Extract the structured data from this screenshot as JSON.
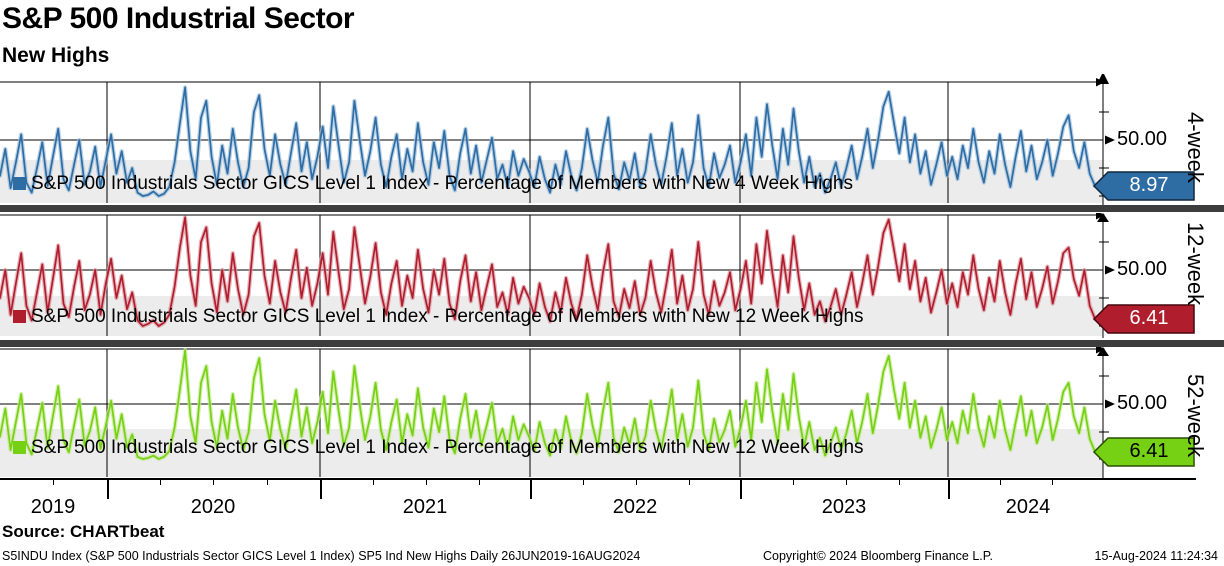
{
  "header": {
    "title": "S&P 500 Industrial Sector",
    "subtitle": "New Highs"
  },
  "source_line": "Source: CHARTbeat",
  "footer": {
    "left": "S5INDU Index (S&P 500 Industrials Sector GICS Level 1 Index) SP5 Ind New Highs  Daily 26JUN2019-16AUG2024",
    "copyright": "Copyright© 2024 Bloomberg Finance L.P.",
    "timestamp": "15-Aug-2024 11:24:34"
  },
  "x_axis": {
    "year_labels": [
      "2019",
      "2020",
      "2021",
      "2022",
      "2023",
      "2024"
    ]
  },
  "colors": {
    "band": "#ececec",
    "separator": "#3d3d3d",
    "blue": "#2e6ca4",
    "blue_light": "#9dbfdd",
    "red": "#b01e2e",
    "red_light": "#dc96a0",
    "green": "#76d013",
    "green_light": "#c3ea8f"
  },
  "chart_data": {
    "type": "line",
    "title": "S&P 500 Industrial Sector - New Highs",
    "x_range": "26JUN2019-16AUG2024",
    "x_tick_labels": [
      "2019",
      "2020",
      "2021",
      "2022",
      "2023",
      "2024"
    ],
    "ylim": [
      0,
      100
    ],
    "grid": true,
    "panels": [
      {
        "name": "4-week",
        "legend": "S&P 500 Industrials Sector GICS Level 1 Index - Percentage of Members with New 4 Week Highs",
        "ytick_label": "50.00",
        "last_value": "8.97",
        "color": "#2e6ca4",
        "color_light": "#9dbfdd",
        "badge_bg": "#2e6ca4",
        "badge_fg": "#ffffff",
        "values": [
          18,
          42,
          7,
          30,
          55,
          12,
          3,
          25,
          48,
          9,
          35,
          60,
          15,
          5,
          28,
          50,
          10,
          22,
          44,
          8,
          32,
          55,
          20,
          40,
          12,
          25,
          3,
          0,
          1,
          4,
          0,
          2,
          8,
          30,
          65,
          97,
          40,
          15,
          70,
          85,
          35,
          10,
          45,
          20,
          60,
          30,
          8,
          25,
          75,
          90,
          42,
          18,
          55,
          28,
          10,
          38,
          65,
          22,
          48,
          15,
          35,
          62,
          25,
          80,
          45,
          12,
          30,
          85,
          50,
          18,
          40,
          70,
          28,
          8,
          35,
          55,
          15,
          42,
          22,
          65,
          30,
          10,
          48,
          25,
          58,
          18,
          5,
          38,
          60,
          20,
          45,
          12,
          32,
          52,
          15,
          28,
          8,
          40,
          18,
          33,
          22,
          8,
          35,
          15,
          3,
          28,
          10,
          40,
          18,
          5,
          25,
          60,
          32,
          12,
          45,
          70,
          20,
          6,
          30,
          14,
          38,
          8,
          22,
          55,
          28,
          10,
          35,
          65,
          18,
          42,
          12,
          30,
          72,
          25,
          8,
          38,
          16,
          28,
          45,
          12,
          30,
          55,
          18,
          70,
          35,
          82,
          45,
          15,
          60,
          28,
          78,
          40,
          12,
          35,
          8,
          20,
          3,
          15,
          30,
          8,
          25,
          45,
          15,
          35,
          60,
          25,
          50,
          80,
          93,
          65,
          38,
          70,
          30,
          55,
          20,
          40,
          10,
          28,
          48,
          18,
          35,
          15,
          45,
          25,
          60,
          30,
          12,
          40,
          20,
          55,
          28,
          8,
          35,
          58,
          22,
          45,
          15,
          30,
          50,
          18,
          38,
          62,
          72,
          40,
          25,
          48,
          20,
          8.97
        ]
      },
      {
        "name": "12-week",
        "legend": "S&P 500 Industrials Sector GICS Level 1 Index - Percentage of Members with New 12 Week Highs",
        "ytick_label": "50.00",
        "last_value": "6.41",
        "color": "#b01e2e",
        "color_light": "#dc96a0",
        "badge_bg": "#b01e2e",
        "badge_fg": "#ffffff",
        "values": [
          25,
          50,
          10,
          38,
          65,
          18,
          5,
          30,
          55,
          12,
          42,
          72,
          20,
          8,
          35,
          58,
          14,
          28,
          50,
          10,
          38,
          60,
          25,
          45,
          15,
          30,
          5,
          0,
          2,
          5,
          0,
          3,
          10,
          35,
          70,
          97,
          45,
          18,
          75,
          88,
          38,
          12,
          50,
          22,
          65,
          33,
          10,
          28,
          80,
          92,
          45,
          20,
          58,
          30,
          12,
          42,
          68,
          25,
          52,
          18,
          38,
          65,
          28,
          84,
          48,
          15,
          33,
          88,
          54,
          20,
          44,
          74,
          30,
          10,
          38,
          58,
          18,
          45,
          25,
          68,
          33,
          12,
          50,
          28,
          60,
          20,
          6,
          40,
          63,
          22,
          48,
          14,
          35,
          55,
          17,
          30,
          10,
          43,
          20,
          35,
          25,
          10,
          38,
          17,
          4,
          30,
          12,
          43,
          20,
          6,
          28,
          63,
          35,
          14,
          48,
          73,
          22,
          8,
          33,
          16,
          40,
          10,
          25,
          58,
          30,
          12,
          38,
          68,
          20,
          45,
          14,
          33,
          75,
          28,
          10,
          40,
          18,
          30,
          48,
          14,
          33,
          58,
          20,
          73,
          38,
          85,
          48,
          17,
          63,
          30,
          80,
          43,
          14,
          38,
          10,
          22,
          4,
          17,
          33,
          10,
          28,
          48,
          17,
          38,
          63,
          28,
          53,
          83,
          95,
          68,
          40,
          73,
          33,
          58,
          22,
          43,
          12,
          30,
          50,
          20,
          38,
          17,
          48,
          28,
          63,
          33,
          14,
          43,
          22,
          58,
          30,
          10,
          38,
          60,
          24,
          48,
          17,
          33,
          53,
          20,
          40,
          65,
          70,
          42,
          27,
          50,
          18,
          6.41
        ]
      },
      {
        "name": "52-week",
        "legend": "S&P 500 Industrials Sector GICS Level 1 Index - Percentage of Members with New 12 Week Highs",
        "ytick_label": "50.00",
        "last_value": "6.41",
        "color": "#76d013",
        "color_light": "#c3ea8f",
        "badge_bg": "#76d013",
        "badge_fg": "#000000",
        "values": [
          20,
          45,
          8,
          33,
          58,
          14,
          4,
          27,
          50,
          10,
          38,
          65,
          17,
          6,
          30,
          53,
          12,
          25,
          46,
          9,
          30,
          52,
          18,
          40,
          10,
          22,
          2,
          0,
          1,
          3,
          0,
          2,
          7,
          28,
          62,
          97,
          38,
          14,
          68,
          83,
          33,
          10,
          43,
          18,
          58,
          28,
          8,
          24,
          72,
          90,
          40,
          16,
          52,
          26,
          9,
          36,
          62,
          20,
          46,
          14,
          33,
          60,
          23,
          78,
          43,
          12,
          28,
          83,
          48,
          17,
          38,
          68,
          26,
          8,
          33,
          53,
          14,
          40,
          21,
          63,
          28,
          10,
          45,
          24,
          56,
          17,
          5,
          36,
          58,
          19,
          43,
          12,
          30,
          50,
          14,
          27,
          8,
          38,
          17,
          31,
          20,
          7,
          33,
          14,
          3,
          26,
          9,
          38,
          16,
          5,
          23,
          58,
          30,
          11,
          43,
          68,
          19,
          6,
          28,
          13,
          36,
          8,
          20,
          52,
          26,
          9,
          33,
          62,
          17,
          40,
          11,
          28,
          70,
          23,
          8,
          36,
          15,
          26,
          43,
          11,
          28,
          52,
          17,
          68,
          33,
          80,
          43,
          14,
          58,
          26,
          76,
          38,
          11,
          33,
          8,
          19,
          3,
          14,
          28,
          8,
          23,
          43,
          14,
          33,
          58,
          23,
          48,
          78,
          92,
          62,
          36,
          68,
          28,
          52,
          19,
          38,
          10,
          26,
          46,
          17,
          33,
          14,
          43,
          23,
          58,
          28,
          11,
          38,
          19,
          52,
          26,
          8,
          33,
          56,
          21,
          43,
          14,
          28,
          48,
          17,
          36,
          60,
          68,
          38,
          23,
          46,
          18,
          6.41
        ]
      }
    ]
  }
}
